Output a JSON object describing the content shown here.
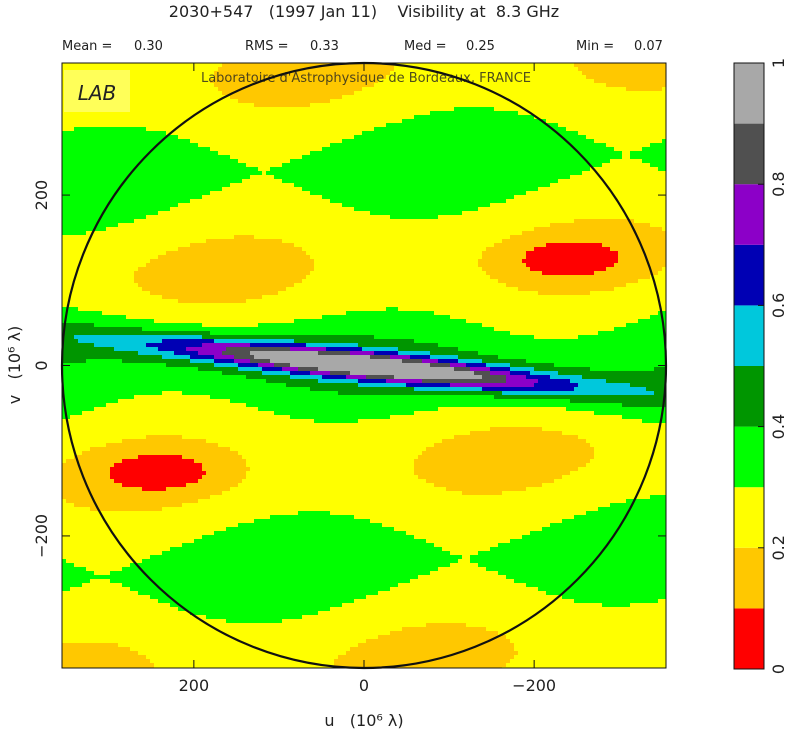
{
  "header": {
    "title": "2030+547   (1997 Jan 11)    Visibility at  8.3 GHz",
    "stats": [
      {
        "label": "Mean =",
        "value": "0.30"
      },
      {
        "label": "RMS =",
        "value": "0.33"
      },
      {
        "label": "Med =",
        "value": "0.25"
      },
      {
        "label": "Min =",
        "value": "0.07"
      }
    ]
  },
  "watermark": {
    "logo_text": "LAB",
    "text": "Laboratoire d'Astrophysique de Bordeaux, FRANCE"
  },
  "chart_data": {
    "type": "heatmap",
    "xlabel": "u   (10⁶ λ)",
    "ylabel": "v   (10⁶ λ)",
    "xlim": [
      355,
      -355
    ],
    "ylim": [
      -355,
      355
    ],
    "xticks": [
      200,
      0,
      -200
    ],
    "xtick_labels": [
      "200",
      "0",
      "−200"
    ],
    "yticks": [
      200,
      0,
      -200
    ],
    "ytick_labels": [
      "200",
      "0",
      "−200"
    ],
    "circle_radius": 355,
    "grid": false,
    "colorbar": {
      "min": 0,
      "max": 1,
      "ticks": [
        0,
        0.2,
        0.4,
        0.6,
        0.8,
        1
      ],
      "tick_labels": [
        "0",
        "0.2",
        "0.4",
        "0.6",
        "0.8",
        "1"
      ],
      "levels": [
        {
          "from": 0.0,
          "to": 0.1,
          "color": "#ff0000"
        },
        {
          "from": 0.1,
          "to": 0.2,
          "color": "#ffc800"
        },
        {
          "from": 0.2,
          "to": 0.3,
          "color": "#ffff00"
        },
        {
          "from": 0.3,
          "to": 0.4,
          "color": "#00ff00"
        },
        {
          "from": 0.4,
          "to": 0.5,
          "color": "#009600"
        },
        {
          "from": 0.5,
          "to": 0.6,
          "color": "#00c8dc"
        },
        {
          "from": 0.6,
          "to": 0.7,
          "color": "#0000b4"
        },
        {
          "from": 0.7,
          "to": 0.8,
          "color": "#8c00c8"
        },
        {
          "from": 0.8,
          "to": 0.9,
          "color": "#505050"
        },
        {
          "from": 0.9,
          "to": 1.0,
          "color": "#a8a8a8"
        }
      ]
    }
  }
}
